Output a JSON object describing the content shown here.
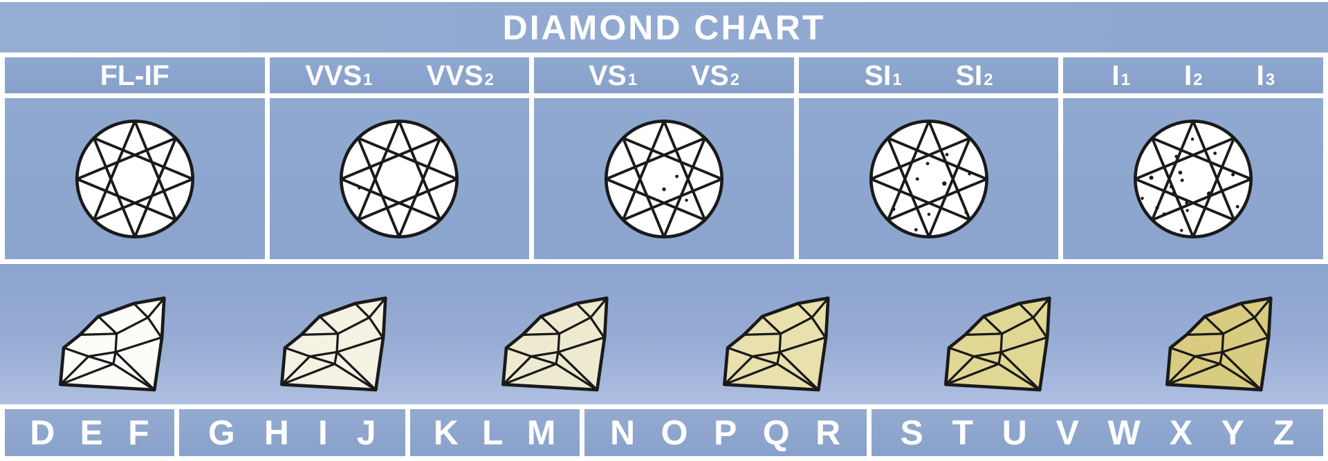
{
  "title": "DIAMOND CHART",
  "colors": {
    "background_blue": "#92aad1",
    "panel_blue": "#8aa4cd",
    "separator_white": "#ffffff",
    "text_white": "#ffffff",
    "line_black": "#1a1a1a"
  },
  "clarity_section": {
    "grades": [
      {
        "id": "fl-if",
        "labels": [
          {
            "base": "FL-IF",
            "sub": ""
          }
        ],
        "inclusions": []
      },
      {
        "id": "vvs",
        "labels": [
          {
            "base": "VVS",
            "sub": "1"
          },
          {
            "base": "VVS",
            "sub": "2"
          }
        ],
        "inclusions": [
          [
            38,
            114,
            2.2
          ]
        ]
      },
      {
        "id": "vs",
        "labels": [
          {
            "base": "VS",
            "sub": "1"
          },
          {
            "base": "VS",
            "sub": "2"
          }
        ],
        "inclusions": [
          [
            120,
            96,
            2.6
          ],
          [
            100,
            116,
            2.9
          ],
          [
            135,
            133,
            2.4
          ]
        ]
      },
      {
        "id": "si",
        "labels": [
          {
            "base": "SI",
            "sub": "1"
          },
          {
            "base": "SI",
            "sub": "2"
          }
        ],
        "inclusions": [
          [
            128,
            62,
            2.6
          ],
          [
            98,
            76,
            2.6
          ],
          [
            82,
            100,
            2.6
          ],
          [
            124,
            107,
            3.4
          ],
          [
            163,
            92,
            2.4
          ],
          [
            158,
            152,
            2.6
          ],
          [
            45,
            147,
            2.8
          ],
          [
            100,
            155,
            2.4
          ],
          [
            80,
            179,
            2.6
          ]
        ]
      },
      {
        "id": "i",
        "labels": [
          {
            "base": "I",
            "sub": "1"
          },
          {
            "base": "I",
            "sub": "2"
          },
          {
            "base": "I",
            "sub": "3"
          }
        ],
        "inclusions": [
          [
            99,
            38,
            2.4
          ],
          [
            134,
            60,
            2.6
          ],
          [
            74,
            65,
            2.6
          ],
          [
            80,
            90,
            3.0
          ],
          [
            35,
            98,
            3.2
          ],
          [
            83,
            102,
            2.6
          ],
          [
            66,
            112,
            2.6
          ],
          [
            70,
            122,
            2.8
          ],
          [
            125,
            123,
            3.6
          ],
          [
            162,
            93,
            2.8
          ],
          [
            90,
            137,
            2.6
          ],
          [
            21,
            130,
            2.4
          ],
          [
            44,
            145,
            2.8
          ],
          [
            55,
            155,
            3.0
          ],
          [
            91,
            149,
            2.4
          ],
          [
            169,
            143,
            2.6
          ],
          [
            82,
            180,
            2.4
          ]
        ]
      }
    ]
  },
  "color_section": {
    "diamond_tints": [
      "#fcfcf8",
      "#f5f2e4",
      "#eeead0",
      "#e8e1ad",
      "#e1d795",
      "#d9cb80"
    ],
    "letter_groups": [
      {
        "letters": [
          "D",
          "E",
          "F"
        ]
      },
      {
        "letters": [
          "G",
          "H",
          "I",
          "J"
        ]
      },
      {
        "letters": [
          "K",
          "L",
          "M"
        ]
      },
      {
        "letters": [
          "N",
          "O",
          "P",
          "Q",
          "R"
        ]
      },
      {
        "letters": [
          "S",
          "T",
          "U",
          "V",
          "W",
          "X",
          "Y",
          "Z"
        ]
      }
    ]
  }
}
